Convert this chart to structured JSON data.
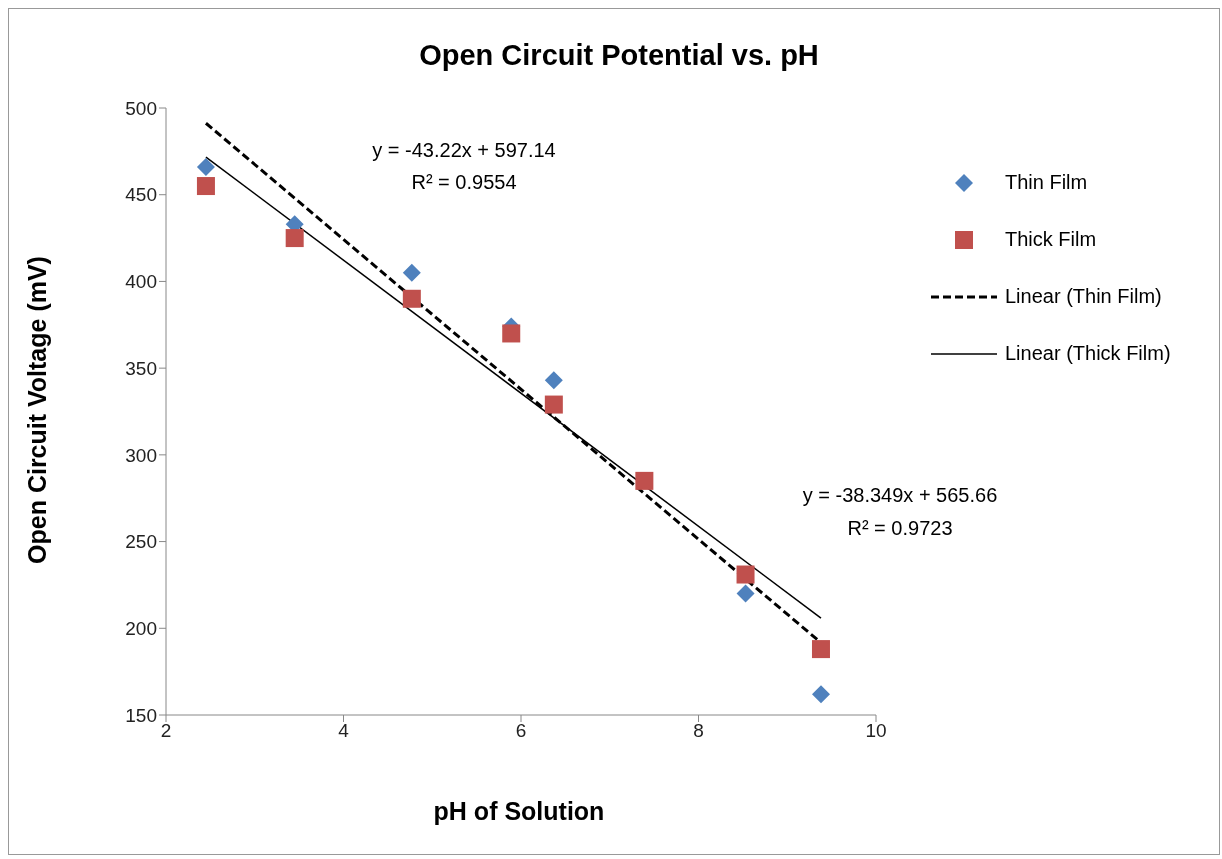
{
  "chart_data": {
    "type": "scatter",
    "title": "Open Circuit Potential vs. pH",
    "xlabel": "pH of Solution",
    "ylabel": "Open Circuit Voltage (mV)",
    "xlim": [
      2,
      10
    ],
    "xticks": [
      2,
      4,
      6,
      8,
      10
    ],
    "ylim": [
      150,
      500
    ],
    "yticks": [
      150,
      200,
      250,
      300,
      350,
      400,
      450,
      500
    ],
    "grid": false,
    "legend": "right",
    "series": [
      {
        "name": "Thin Film",
        "marker": "diamond",
        "color": "#4f81bd",
        "x": [
          2.45,
          3.45,
          4.77,
          5.89,
          6.37,
          7.39,
          8.53,
          9.38
        ],
        "values": [
          466,
          433,
          405,
          374,
          343,
          null,
          220,
          162
        ]
      },
      {
        "name": "Thick Film",
        "marker": "square",
        "color": "#c0504d",
        "x": [
          2.45,
          3.45,
          4.77,
          5.89,
          6.37,
          7.39,
          8.53,
          9.38
        ],
        "values": [
          455,
          425,
          390,
          370,
          329,
          285,
          231,
          188
        ]
      },
      {
        "name": "Linear (Thin Film)",
        "type": "line",
        "marker": "none",
        "line_style": "dashed",
        "color": "#000000",
        "x": [
          2.45,
          9.38
        ],
        "values": [
          491.2,
          191.7
        ]
      },
      {
        "name": "Linear (Thick Film)",
        "type": "line",
        "marker": "none",
        "line_style": "solid",
        "color": "#000000",
        "x": [
          2.45,
          9.38
        ],
        "values": [
          471.7,
          205.9
        ]
      }
    ],
    "annotations": [
      "y = -43.22x + 597.14",
      "R² = 0.9554",
      "y = -38.349x + 565.66",
      "R² = 0.9723"
    ]
  }
}
